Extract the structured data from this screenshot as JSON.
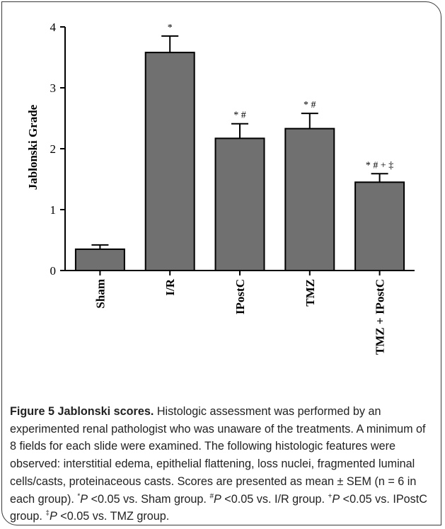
{
  "chart_data": {
    "type": "bar",
    "categories": [
      "Sham",
      "I/R",
      "IPostC",
      "TMZ",
      "TMZ + IPostC"
    ],
    "values": [
      0.35,
      3.58,
      2.17,
      2.33,
      1.45
    ],
    "errors": [
      0.07,
      0.27,
      0.24,
      0.25,
      0.14
    ],
    "significance": [
      "",
      "*",
      "* #",
      "* #",
      "* # + ‡"
    ],
    "ylabel": "Jablonski Grade",
    "ylim": [
      0,
      4
    ],
    "yticks": [
      0,
      1,
      2,
      3,
      4
    ],
    "grid": false,
    "bar_color": "#707070"
  },
  "caption": {
    "title": "Figure 5 Jablonski scores.",
    "body": "Histologic assessment was performed by an experimented renal pathologist who was unaware of the treatments. A minimum of 8 fields for each slide were examined. The following histologic features were observed: interstitial edema, epithelial flattening, loss nuclei, fragmented luminal cells/casts, proteinaceous casts. Scores are presented as mean ± SEM (n = 6 in each group).",
    "notes": [
      {
        "mark": "*",
        "p": "P",
        "text": " <0.05 vs. Sham group."
      },
      {
        "mark": "#",
        "p": "P",
        "text": " <0.05 vs. I/R group."
      },
      {
        "mark": "+",
        "p": "P",
        "text": " <0.05 vs. IPostC group."
      },
      {
        "mark": "‡",
        "p": "P",
        "text": " <0.05 vs. TMZ group."
      }
    ]
  }
}
